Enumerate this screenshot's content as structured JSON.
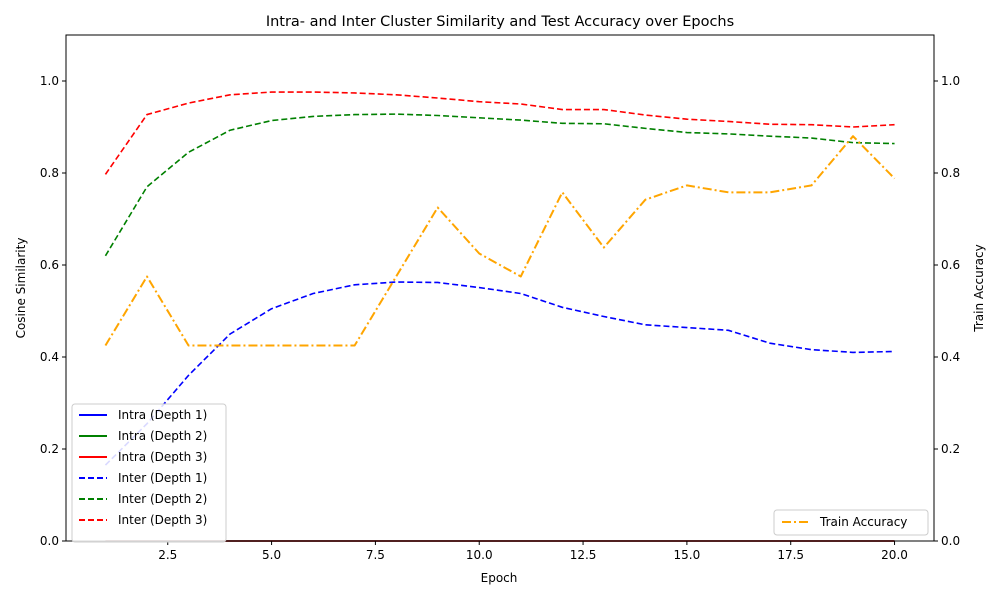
{
  "chart_data": {
    "type": "line",
    "title": "Intra- and Inter Cluster Similarity and Test Accuracy over Epochs",
    "xlabel": "Epoch",
    "ylabel_left": "Cosine Similarity",
    "ylabel_right": "Train Accuracy",
    "xlim": [
      0.05,
      20.95
    ],
    "ylim_left": [
      0.0,
      1.1
    ],
    "ylim_right": [
      0.0,
      1.1
    ],
    "x_ticks": [
      2.5,
      5.0,
      7.5,
      10.0,
      12.5,
      15.0,
      17.5,
      20.0
    ],
    "x_tick_labels": [
      "2.5",
      "5.0",
      "7.5",
      "10.0",
      "12.5",
      "15.0",
      "17.5",
      "20.0"
    ],
    "y_ticks": [
      0.0,
      0.2,
      0.4,
      0.6,
      0.8,
      1.0
    ],
    "y_tick_labels": [
      "0.0",
      "0.2",
      "0.4",
      "0.6",
      "0.8",
      "1.0"
    ],
    "grid": false,
    "x": [
      1,
      2,
      3,
      4,
      5,
      6,
      7,
      8,
      9,
      10,
      11,
      12,
      13,
      14,
      15,
      16,
      17,
      18,
      19,
      20
    ],
    "series": [
      {
        "name": "Intra (Depth 1)",
        "axis": "left",
        "color": "#0000ff",
        "style": "solid",
        "values": [
          0.0,
          0.0,
          0.0,
          0.0,
          0.0,
          0.0,
          0.0,
          0.0,
          0.0,
          0.0,
          0.0,
          0.0,
          0.0,
          0.0,
          0.0,
          0.0,
          0.0,
          0.0,
          0.0,
          0.0
        ]
      },
      {
        "name": "Intra (Depth 2)",
        "axis": "left",
        "color": "#008000",
        "style": "solid",
        "values": [
          0.0,
          0.0,
          0.0,
          0.0,
          0.0,
          0.0,
          0.0,
          0.0,
          0.0,
          0.0,
          0.0,
          0.0,
          0.0,
          0.0,
          0.0,
          0.0,
          0.0,
          0.0,
          0.0,
          0.0
        ]
      },
      {
        "name": "Intra (Depth 3)",
        "axis": "left",
        "color": "#ff0000",
        "style": "solid",
        "values": [
          0.0,
          0.0,
          0.0,
          0.0,
          0.0,
          0.0,
          0.0,
          0.0,
          0.0,
          0.0,
          0.0,
          0.0,
          0.0,
          0.0,
          0.0,
          0.0,
          0.0,
          0.0,
          0.0,
          0.0
        ]
      },
      {
        "name": "Inter (Depth 1)",
        "axis": "left",
        "color": "#0000ff",
        "style": "dashed",
        "values": [
          0.165,
          0.255,
          0.36,
          0.45,
          0.505,
          0.538,
          0.557,
          0.563,
          0.562,
          0.551,
          0.538,
          0.508,
          0.488,
          0.47,
          0.464,
          0.458,
          0.43,
          0.416,
          0.41,
          0.412
        ]
      },
      {
        "name": "Inter (Depth 2)",
        "axis": "left",
        "color": "#008000",
        "style": "dashed",
        "values": [
          0.62,
          0.77,
          0.845,
          0.893,
          0.914,
          0.923,
          0.927,
          0.928,
          0.925,
          0.92,
          0.915,
          0.908,
          0.907,
          0.897,
          0.888,
          0.885,
          0.88,
          0.876,
          0.866,
          0.864
        ]
      },
      {
        "name": "Inter (Depth 3)",
        "axis": "left",
        "color": "#ff0000",
        "style": "dashed",
        "values": [
          0.797,
          0.927,
          0.952,
          0.97,
          0.976,
          0.976,
          0.974,
          0.97,
          0.963,
          0.955,
          0.95,
          0.938,
          0.938,
          0.926,
          0.917,
          0.912,
          0.906,
          0.905,
          0.9,
          0.905
        ]
      },
      {
        "name": "Train Accuracy",
        "axis": "right",
        "color": "#ffa500",
        "style": "dashdot",
        "values": [
          0.425,
          0.575,
          0.425,
          0.425,
          0.425,
          0.425,
          0.425,
          0.575,
          0.725,
          0.625,
          0.575,
          0.758,
          0.638,
          0.742,
          0.773,
          0.758,
          0.758,
          0.773,
          0.88,
          0.788
        ]
      }
    ],
    "legend_left_placement": "lower left",
    "legend_right_placement": "lower right"
  }
}
